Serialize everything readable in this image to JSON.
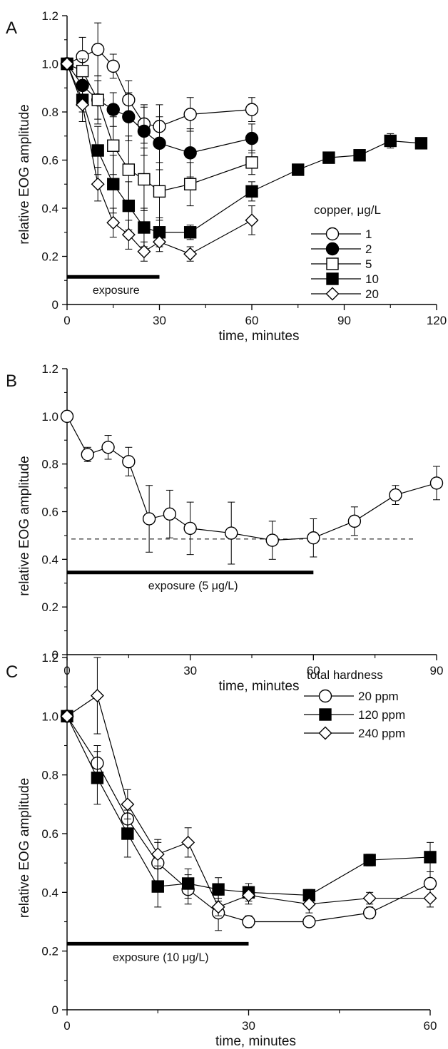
{
  "chart_data": [
    {
      "type": "line",
      "panel": "A",
      "xlabel": "time, minutes",
      "ylabel": "relative EOG amplitude",
      "xlim": [
        0,
        120
      ],
      "ylim": [
        0,
        1.2
      ],
      "xticks": [
        0,
        30,
        60,
        90,
        120
      ],
      "yticks": [
        0,
        0.2,
        0.4,
        0.6,
        0.8,
        1.0,
        1.2
      ],
      "legend": {
        "title": "copper, μg/L",
        "placement": "right"
      },
      "exposure": {
        "label": "exposure",
        "x0": 0,
        "x1": 30,
        "y": 0.115
      },
      "series": [
        {
          "name": "1",
          "marker": "circle-open",
          "x": [
            0,
            5,
            10,
            15,
            20,
            25,
            30,
            40,
            60
          ],
          "y": [
            1.0,
            1.03,
            1.06,
            0.99,
            0.85,
            0.75,
            0.74,
            0.79,
            0.81
          ],
          "err": [
            0,
            0.08,
            0.11,
            0.05,
            0.08,
            0.08,
            0.09,
            0.07,
            0.05
          ]
        },
        {
          "name": "2",
          "marker": "circle-filled",
          "x": [
            0,
            5,
            10,
            15,
            20,
            25,
            30,
            40,
            60
          ],
          "y": [
            1.0,
            0.91,
            0.85,
            0.81,
            0.78,
            0.72,
            0.67,
            0.63,
            0.69
          ],
          "err": [
            0,
            0.05,
            0.08,
            0.07,
            0.1,
            0.1,
            0.11,
            0.1,
            0.06
          ]
        },
        {
          "name": "5",
          "marker": "square-open",
          "x": [
            0,
            5,
            10,
            15,
            20,
            25,
            30,
            40,
            60
          ],
          "y": [
            1.0,
            0.97,
            0.85,
            0.66,
            0.56,
            0.52,
            0.47,
            0.5,
            0.59
          ],
          "err": [
            0,
            0.05,
            0.1,
            0.12,
            0.14,
            0.13,
            0.12,
            0.09,
            0.05
          ]
        },
        {
          "name": "10",
          "marker": "square-filled",
          "x": [
            0,
            5,
            10,
            15,
            20,
            25,
            30,
            40,
            60,
            75,
            85,
            95,
            105,
            115
          ],
          "y": [
            1.0,
            0.85,
            0.64,
            0.5,
            0.41,
            0.32,
            0.3,
            0.3,
            0.47,
            0.56,
            0.61,
            0.62,
            0.68,
            0.67
          ],
          "err": [
            0,
            0.05,
            0.1,
            0.12,
            0.1,
            0.08,
            0.06,
            0.03,
            0.04,
            0.02,
            0.02,
            0.02,
            0.03,
            0.02
          ]
        },
        {
          "name": "20",
          "marker": "diamond-open",
          "x": [
            0,
            5,
            10,
            15,
            20,
            25,
            30,
            40,
            60
          ],
          "y": [
            1.0,
            0.83,
            0.5,
            0.34,
            0.29,
            0.22,
            0.26,
            0.21,
            0.35
          ],
          "err": [
            0,
            0.07,
            0.07,
            0.06,
            0.06,
            0.04,
            0.04,
            0.03,
            0.06
          ]
        }
      ]
    },
    {
      "type": "line",
      "panel": "B",
      "xlabel": "time, minutes",
      "ylabel": "relative EOG amplitude",
      "xlim": [
        0,
        90
      ],
      "ylim": [
        0,
        1.2
      ],
      "xticks": [
        0,
        30,
        60,
        90
      ],
      "yticks": [
        0,
        0.2,
        0.4,
        0.6,
        0.8,
        1.0,
        1.2
      ],
      "reference_line": {
        "y": 0.485,
        "style": "dashed"
      },
      "exposure": {
        "label": "exposure (5 μg/L)",
        "x0": 0,
        "x1": 60,
        "y": 0.345
      },
      "series": [
        {
          "name": "",
          "marker": "circle-open",
          "x": [
            0,
            5,
            10,
            15,
            20,
            25,
            30,
            40,
            50,
            60,
            70,
            80,
            90
          ],
          "y": [
            1.0,
            0.84,
            0.87,
            0.81,
            0.57,
            0.59,
            0.53,
            0.51,
            0.48,
            0.49,
            0.56,
            0.67,
            0.72
          ],
          "err": [
            0,
            0.03,
            0.05,
            0.06,
            0.14,
            0.1,
            0.11,
            0.13,
            0.08,
            0.08,
            0.06,
            0.04,
            0.07
          ]
        }
      ]
    },
    {
      "type": "line",
      "panel": "C",
      "xlabel": "time, minutes",
      "ylabel": "relative EOG amplitude",
      "xlim": [
        0,
        60
      ],
      "ylim": [
        0,
        1.2
      ],
      "xticks": [
        0,
        30,
        60
      ],
      "yticks": [
        0,
        0.2,
        0.4,
        0.6,
        0.8,
        1.0,
        1.2
      ],
      "legend": {
        "title": "total hardness",
        "placement": "top-right"
      },
      "exposure": {
        "label": "exposure (10 μg/L)",
        "x0": 0,
        "x1": 30,
        "y": 0.225
      },
      "series": [
        {
          "name": "20 ppm",
          "marker": "circle-open",
          "x": [
            0,
            5,
            10,
            15,
            20,
            25,
            30,
            40,
            50,
            60
          ],
          "y": [
            1.0,
            0.84,
            0.65,
            0.5,
            0.41,
            0.33,
            0.3,
            0.3,
            0.33,
            0.43
          ],
          "err": [
            0,
            0.06,
            0.06,
            0.07,
            0.05,
            0.06,
            0.02,
            0.01,
            0.02,
            0.04
          ]
        },
        {
          "name": "120 ppm",
          "marker": "square-filled",
          "x": [
            0,
            5,
            10,
            15,
            20,
            25,
            30,
            40,
            50,
            60
          ],
          "y": [
            1.0,
            0.79,
            0.6,
            0.42,
            0.43,
            0.41,
            0.4,
            0.39,
            0.51,
            0.52
          ],
          "err": [
            0,
            0.09,
            0.08,
            0.07,
            0.05,
            0.04,
            0.03,
            0.02,
            0.02,
            0.05
          ]
        },
        {
          "name": "240 ppm",
          "marker": "diamond-open",
          "x": [
            0,
            5,
            10,
            15,
            20,
            25,
            30,
            40,
            50,
            60
          ],
          "y": [
            1.0,
            1.07,
            0.7,
            0.53,
            0.57,
            0.35,
            0.39,
            0.36,
            0.38,
            0.38
          ],
          "err": [
            0,
            0.13,
            0.05,
            0.05,
            0.05,
            0.03,
            0.03,
            0.03,
            0.02,
            0.03
          ]
        }
      ]
    }
  ]
}
